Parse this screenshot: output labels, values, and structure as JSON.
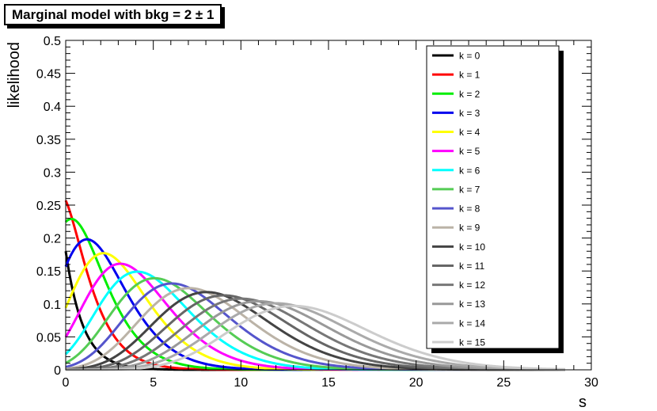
{
  "title": "Marginal model with bkg = 2 ± 1",
  "chart_data": {
    "type": "line",
    "xlabel": "s",
    "ylabel": "likelihood",
    "xlim": [
      0,
      30
    ],
    "ylim": [
      0,
      0.5
    ],
    "x_ticks": [
      "0",
      "5",
      "10",
      "15",
      "20",
      "25",
      "30"
    ],
    "y_ticks": [
      "0",
      "0.05",
      "0.1",
      "0.15",
      "0.2",
      "0.25",
      "0.3",
      "0.35",
      "0.4",
      "0.45",
      "0.5"
    ],
    "grid": false,
    "legend_position": "top-right",
    "bkg_mean": 2,
    "bkg_sigma": 1,
    "series": [
      {
        "name": "k = 0",
        "color": "#000000",
        "peak_x": 0.0,
        "peak_y": 0.18
      },
      {
        "name": "k = 1",
        "color": "#ff0000",
        "peak_x": 0.0,
        "peak_y": 0.257
      },
      {
        "name": "k = 2",
        "color": "#00ee00",
        "peak_x": 0.5,
        "peak_y": 0.229
      },
      {
        "name": "k = 3",
        "color": "#0000ee",
        "peak_x": 1.4,
        "peak_y": 0.198
      },
      {
        "name": "k = 4",
        "color": "#ffff00",
        "peak_x": 2.4,
        "peak_y": 0.177
      },
      {
        "name": "k = 5",
        "color": "#ff00ff",
        "peak_x": 3.3,
        "peak_y": 0.161
      },
      {
        "name": "k = 6",
        "color": "#00ffff",
        "peak_x": 4.3,
        "peak_y": 0.149
      },
      {
        "name": "k = 7",
        "color": "#55cc55",
        "peak_x": 5.3,
        "peak_y": 0.139
      },
      {
        "name": "k = 8",
        "color": "#5555cc",
        "peak_x": 6.3,
        "peak_y": 0.131
      },
      {
        "name": "k = 9",
        "color": "#bbb3a7",
        "peak_x": 7.3,
        "peak_y": 0.124
      },
      {
        "name": "k = 10",
        "color": "#444444",
        "peak_x": 8.3,
        "peak_y": 0.118
      },
      {
        "name": "k = 11",
        "color": "#666666",
        "peak_x": 9.3,
        "peak_y": 0.113
      },
      {
        "name": "k = 12",
        "color": "#777777",
        "peak_x": 10.3,
        "peak_y": 0.108
      },
      {
        "name": "k = 13",
        "color": "#999999",
        "peak_x": 11.3,
        "peak_y": 0.104
      },
      {
        "name": "k = 14",
        "color": "#aaaaaa",
        "peak_x": 12.3,
        "peak_y": 0.101
      },
      {
        "name": "k = 15",
        "color": "#cccccc",
        "peak_x": 13.3,
        "peak_y": 0.097
      }
    ]
  }
}
